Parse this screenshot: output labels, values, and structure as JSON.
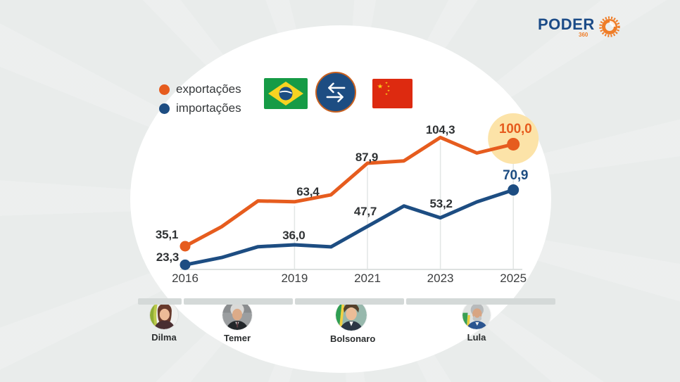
{
  "brand": {
    "name": "PODER",
    "sub": "360"
  },
  "legend": {
    "items": [
      {
        "label": "exportações",
        "color": "#e65c1e"
      },
      {
        "label": "importações",
        "color": "#1d4d82"
      }
    ]
  },
  "icons": {
    "brazil_flag": "brazil-flag",
    "china_flag": "china-flag",
    "exchange": "trade-exchange-arrows",
    "logo_sun": "orange-sunburst"
  },
  "colors": {
    "exports": "#e65c1e",
    "imports": "#1d4d82",
    "highlight_halo": "#fce3a8",
    "background": "#e9eceb",
    "label_text": "#2f3234"
  },
  "chart_data": {
    "type": "line",
    "title": "",
    "x": [
      2016,
      2017,
      2018,
      2019,
      2020,
      2021,
      2022,
      2023,
      2024,
      2025
    ],
    "x_ticks": [
      2016,
      2019,
      2021,
      2023,
      2025
    ],
    "grid": "vertical-at-ticks",
    "legend_position": "top-left",
    "ylim": [
      15,
      115
    ],
    "series": [
      {
        "name": "exportações",
        "color": "#e65c1e",
        "values": [
          35.1,
          47.5,
          63.9,
          63.4,
          67.8,
          87.9,
          89.4,
          104.3,
          94.4,
          100.0
        ],
        "labeled_years": [
          2016,
          2019,
          2021,
          2023,
          2025
        ],
        "tick_labels": [
          "35,1",
          "63,4",
          "87,9",
          "104,3",
          "100,0"
        ],
        "end_highlighted": true
      },
      {
        "name": "importações",
        "color": "#1d4d82",
        "values": [
          23.3,
          27.9,
          34.8,
          36.0,
          34.7,
          47.7,
          60.7,
          53.2,
          63.3,
          70.9
        ],
        "labeled_years": [
          2016,
          2019,
          2021,
          2023,
          2025
        ],
        "tick_labels": [
          "23,3",
          "36,0",
          "47,7",
          "53,2",
          "70,9"
        ],
        "end_highlighted": false
      }
    ],
    "highlight": {
      "series": "exportações",
      "year": 2025,
      "halo_color": "#fce3a8"
    }
  },
  "timeline": {
    "presidents": [
      {
        "name": "Dilma"
      },
      {
        "name": "Temer"
      },
      {
        "name": "Bolsonaro"
      },
      {
        "name": "Lula"
      }
    ]
  }
}
